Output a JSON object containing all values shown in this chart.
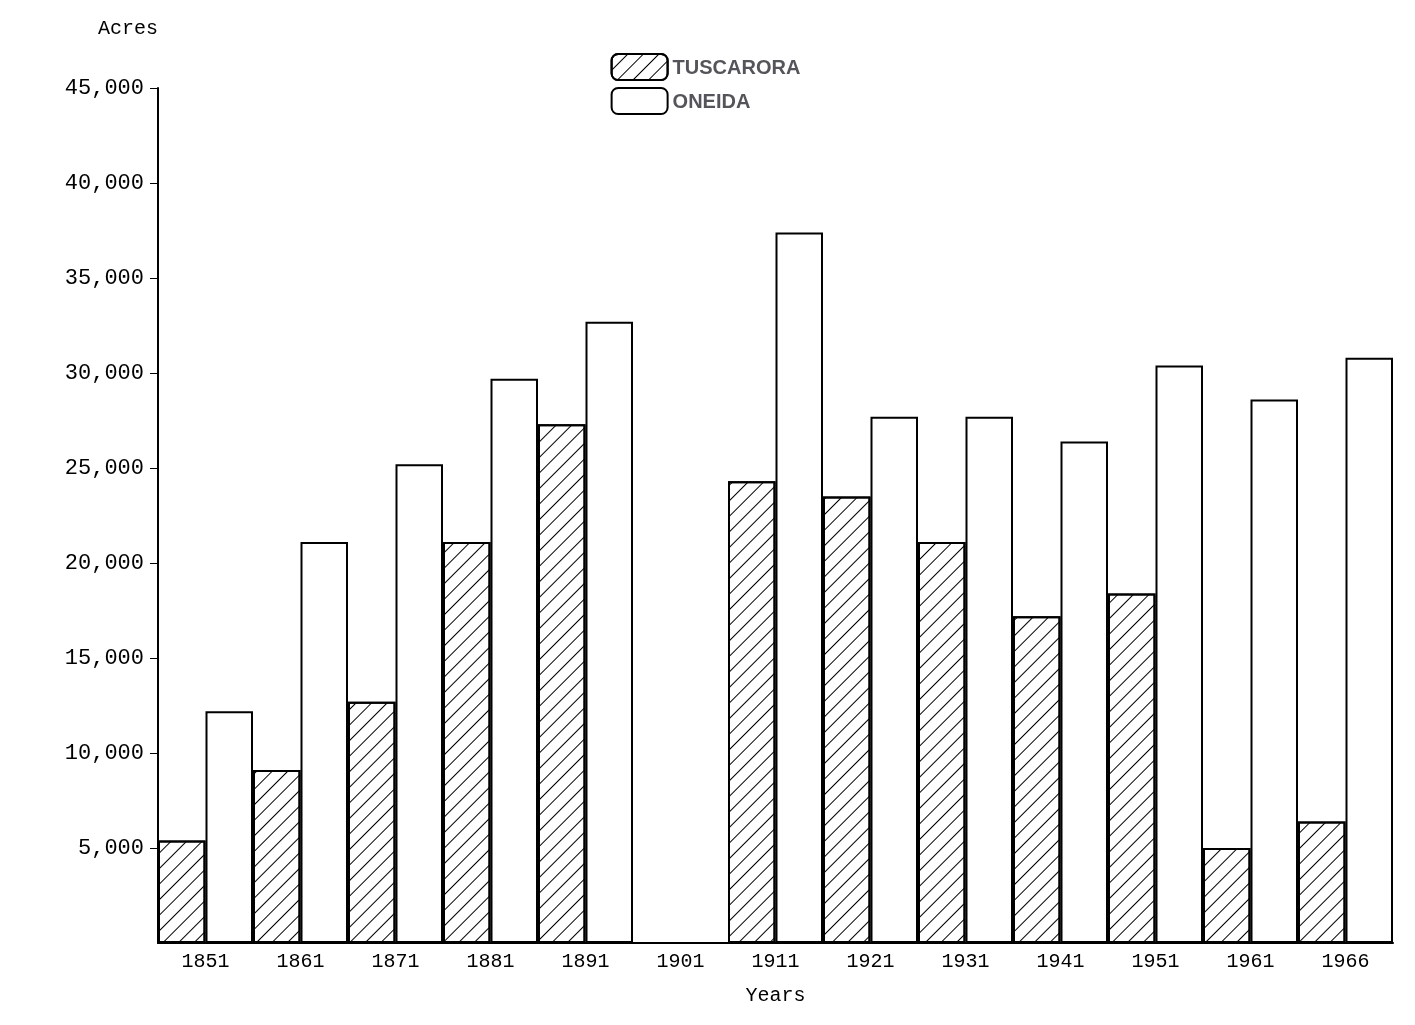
{
  "chart_data": {
    "type": "bar",
    "xlabel": "Years",
    "ylabel": "Acres",
    "categories": [
      "1851",
      "1861",
      "1871",
      "1881",
      "1891",
      "1901",
      "1911",
      "1921",
      "1931",
      "1941",
      "1951",
      "1961",
      "1966"
    ],
    "series": [
      {
        "name": "TUSCARORA",
        "color": "#ffffff",
        "values": [
          5400,
          9100,
          12700,
          21100,
          27300,
          null,
          24300,
          23500,
          21100,
          17200,
          18400,
          5000,
          6400
        ]
      },
      {
        "name": "ONEIDA",
        "color": "#ffffff",
        "values": [
          12200,
          21100,
          25200,
          29700,
          32700,
          null,
          37400,
          27700,
          27700,
          26400,
          30400,
          28600,
          30800
        ]
      }
    ],
    "ylim": [
      0,
      45000
    ],
    "yticks": [
      {
        "value": 5000,
        "label": "5,000"
      },
      {
        "value": 10000,
        "label": "10,000"
      },
      {
        "value": 15000,
        "label": "15,000"
      },
      {
        "value": 20000,
        "label": "20,000"
      },
      {
        "value": 25000,
        "label": "25,000"
      },
      {
        "value": 30000,
        "label": "30,000"
      },
      {
        "value": 35000,
        "label": "35,000"
      },
      {
        "value": 40000,
        "label": "40,000"
      },
      {
        "value": 45000,
        "label": "45,000"
      }
    ],
    "grid": false,
    "legend": "top"
  }
}
